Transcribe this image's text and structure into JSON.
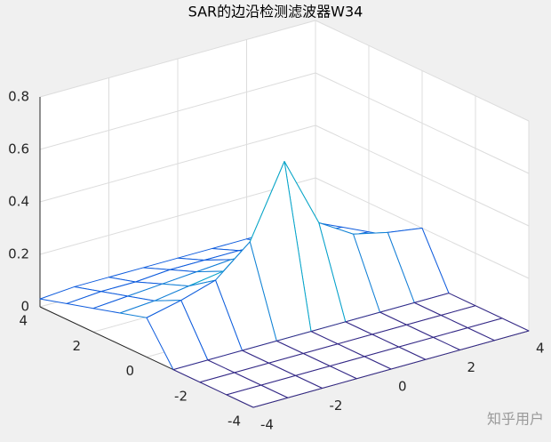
{
  "chart_data": {
    "type": "mesh",
    "title": "SAR的边沿检测滤波器W34",
    "x": [
      -4,
      -3,
      -2,
      -1,
      0,
      1,
      2,
      3,
      4
    ],
    "y": [
      -4,
      -3,
      -2,
      -1,
      0,
      1,
      2,
      3,
      4
    ],
    "z": [
      [
        0,
        0,
        0,
        0,
        0,
        0,
        0,
        0,
        0
      ],
      [
        0,
        0,
        0,
        0,
        0,
        0,
        0,
        0,
        0
      ],
      [
        0,
        0,
        0,
        0,
        0,
        0,
        0,
        0,
        0
      ],
      [
        0,
        0,
        0,
        0,
        0,
        0,
        0,
        0,
        0
      ],
      [
        0.15,
        0.18,
        0.22,
        0.33,
        0.6,
        0.33,
        0.25,
        0.22,
        0.2
      ],
      [
        0.12,
        0.13,
        0.15,
        0.17,
        0.2,
        0.17,
        0.15,
        0.13,
        0.12
      ],
      [
        0.09,
        0.1,
        0.11,
        0.12,
        0.13,
        0.12,
        0.11,
        0.1,
        0.09
      ],
      [
        0.06,
        0.07,
        0.07,
        0.08,
        0.08,
        0.08,
        0.07,
        0.07,
        0.06
      ],
      [
        0.03,
        0.04,
        0.04,
        0.04,
        0.04,
        0.04,
        0.04,
        0.04,
        0.03
      ]
    ],
    "xlim": [
      -4,
      4
    ],
    "ylim": [
      -4,
      4
    ],
    "zlim": [
      0,
      0.8
    ],
    "xticks": [
      -4,
      -2,
      0,
      2,
      4
    ],
    "yticks": [
      -4,
      -2,
      0,
      2,
      4
    ],
    "zticks": [
      0,
      0.2,
      0.4,
      0.6,
      0.8
    ],
    "grid": true,
    "colormap": [
      "#352a87",
      "#0f5cdd",
      "#1481d6",
      "#06a4ca",
      "#2eb7a4",
      "#87bf77",
      "#d1bb59",
      "#fec832",
      "#f9fb0e"
    ]
  },
  "watermark": "知乎用户"
}
